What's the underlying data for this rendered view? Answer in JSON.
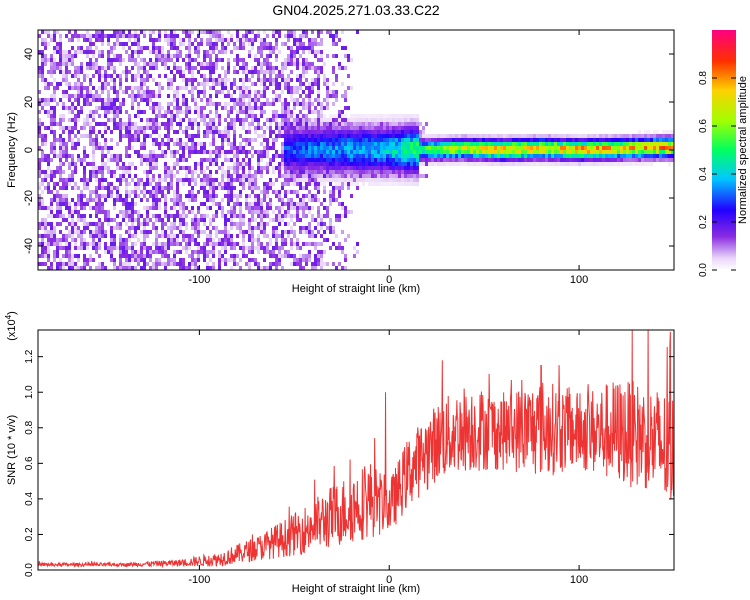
{
  "figure_title": "GN04.2025.271.03.33.C22",
  "chart_data": [
    {
      "type": "heatmap",
      "title": "",
      "xlabel": "Height of straight line (km)",
      "ylabel": "Frequency (Hz)",
      "xlim": [
        -185,
        150
      ],
      "ylim": [
        -50,
        50
      ],
      "xticks": [
        -100,
        0,
        100
      ],
      "yticks": [
        -40,
        -20,
        0,
        20,
        40
      ],
      "colorbar": {
        "label": "Normalized spectral amplitude",
        "range": [
          0,
          1
        ],
        "ticks": [
          "0.0",
          "0.2",
          "0.4",
          "0.6",
          "0.8"
        ]
      },
      "ridge": {
        "description_points_x": [
          -50,
          -30,
          0,
          20,
          40,
          60,
          80,
          100,
          120,
          150
        ],
        "center_freq_hz": [
          0,
          0,
          0,
          0,
          0.5,
          0,
          0.5,
          0,
          0.5,
          1
        ],
        "peak_amplitude": [
          0.35,
          0.4,
          0.45,
          0.65,
          0.8,
          0.9,
          0.85,
          0.9,
          0.85,
          0.9
        ]
      },
      "noise_region": {
        "x_from": -185,
        "x_to": -20
      }
    },
    {
      "type": "line",
      "title": "",
      "xlabel": "Height of straight line (km)",
      "ylabel": "SNR (10 * v/v)",
      "y_multiplier": "(x10",
      "y_multiplier_exp": "4",
      "xlim": [
        -185,
        150
      ],
      "ylim": [
        0,
        1.35
      ],
      "xticks": [
        -100,
        0,
        100
      ],
      "yticks": [
        "0.0",
        "0.2",
        "0.4",
        "0.6",
        "0.8",
        "1.0",
        "1.2"
      ],
      "series": [
        {
          "color": "#ee3333",
          "envelope_x": [
            -185,
            -140,
            -110,
            -90,
            -70,
            -50,
            -30,
            -10,
            0,
            10,
            25,
            40,
            60,
            80,
            100,
            120,
            135,
            150
          ],
          "envelope_mean": [
            0.03,
            0.03,
            0.04,
            0.06,
            0.12,
            0.2,
            0.3,
            0.4,
            0.35,
            0.55,
            0.72,
            0.8,
            0.78,
            0.8,
            0.78,
            0.78,
            0.75,
            0.65
          ],
          "envelope_spread": [
            0.01,
            0.01,
            0.02,
            0.04,
            0.07,
            0.12,
            0.18,
            0.22,
            0.15,
            0.2,
            0.22,
            0.25,
            0.22,
            0.28,
            0.22,
            0.3,
            0.3,
            0.35
          ],
          "spike_maxima": [
            {
              "x": -2,
              "y": 1.0
            },
            {
              "x": 28,
              "y": 1.18
            },
            {
              "x": 80,
              "y": 1.15
            },
            {
              "x": 128,
              "y": 1.35
            },
            {
              "x": 148,
              "y": 1.34
            }
          ]
        }
      ]
    }
  ]
}
